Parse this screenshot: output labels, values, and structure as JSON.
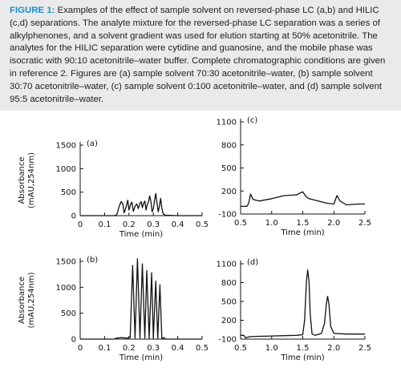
{
  "caption": {
    "label": "FIGURE 1:",
    "text": " Examples of the effect of sample solvent on reversed-phase LC (a,b) and HILIC (c,d) separations. The analyte mixture for the reversed-phase LC separation was a series of alkylphenones, and a solvent gradient was used for elution starting at 50% acetonitrile. The analytes for the HILIC separation were cytidine and guanosine, and the mobile phase was isocratic with 90:10 acetonitrile–water buffer. Complete chromatographic conditions are given in reference 2. Figures are (a) sample solvent 70:30 acetonitrile–water, (b) sample solvent 30:70 acetonitrile–water, (c) sample solvent 0:100 acetonitrile–water, and (d) sample solvent 95:5 acetonitrile–water.",
    "label_color": "#1a8fc9",
    "background": "#e9eaeb"
  },
  "chart_data": [
    {
      "id": "a",
      "type": "line",
      "panel_label": "(a)",
      "xlabel": "Time (min)",
      "ylabel": "Absorbance (mAU,254nm)",
      "xlim": [
        0,
        0.5
      ],
      "ylim": [
        0,
        1500
      ],
      "xticks": [
        0,
        0.1,
        0.2,
        0.3,
        0.4,
        0.5
      ],
      "xtick_labels": [
        "0",
        "0.1",
        "0.2",
        "0.3",
        "0.4",
        "0.5"
      ],
      "yticks": [
        0,
        500,
        1000,
        1500
      ],
      "ytick_labels": [
        "0",
        "500",
        "1000",
        "1500"
      ],
      "series": [
        {
          "x": [
            0,
            0.05,
            0.1,
            0.14,
            0.15,
            0.16,
            0.168,
            0.175,
            0.18,
            0.188,
            0.195,
            0.2,
            0.207,
            0.212,
            0.218,
            0.225,
            0.232,
            0.238,
            0.245,
            0.25,
            0.255,
            0.26,
            0.265,
            0.27,
            0.275,
            0.28,
            0.285,
            0.29,
            0.295,
            0.3,
            0.305,
            0.31,
            0.315,
            0.32,
            0.325,
            0.33,
            0.335,
            0.34,
            0.35,
            0.4,
            0.45,
            0.5
          ],
          "y": [
            0,
            0,
            0,
            0,
            20,
            200,
            300,
            250,
            60,
            180,
            330,
            120,
            240,
            290,
            90,
            200,
            250,
            150,
            260,
            300,
            170,
            260,
            310,
            120,
            240,
            290,
            420,
            300,
            80,
            150,
            320,
            470,
            260,
            80,
            200,
            370,
            160,
            40,
            10,
            0,
            0,
            0
          ]
        }
      ]
    },
    {
      "id": "b",
      "type": "line",
      "panel_label": "(b)",
      "xlabel": "Time (min)",
      "ylabel": "Absorbance (mAU,254nm)",
      "xlim": [
        0,
        0.5
      ],
      "ylim": [
        0,
        1500
      ],
      "xticks": [
        0,
        0.1,
        0.2,
        0.3,
        0.4,
        0.5
      ],
      "xtick_labels": [
        "0",
        "0.1",
        "0.2",
        "0.3",
        "0.4",
        "0.5"
      ],
      "yticks": [
        0,
        500,
        1000,
        1500
      ],
      "ytick_labels": [
        "0",
        "500",
        "1000",
        "1500"
      ],
      "series": [
        {
          "x": [
            0,
            0.1,
            0.14,
            0.15,
            0.17,
            0.19,
            0.205,
            0.215,
            0.225,
            0.235,
            0.245,
            0.255,
            0.265,
            0.273,
            0.283,
            0.293,
            0.3,
            0.31,
            0.318,
            0.327,
            0.335,
            0.343,
            0.35,
            0.36,
            0.4,
            0.5
          ],
          "y": [
            0,
            0,
            0,
            20,
            30,
            20,
            30,
            1420,
            20,
            1550,
            20,
            1450,
            20,
            1320,
            15,
            1280,
            15,
            1120,
            10,
            1050,
            10,
            30,
            0,
            0,
            0,
            0
          ]
        }
      ]
    },
    {
      "id": "c",
      "type": "line",
      "panel_label": "(c)",
      "xlabel": "Time (min)",
      "xlim": [
        0.5,
        2.5
      ],
      "ylim": [
        -100,
        1100
      ],
      "xticks": [
        0.5,
        1.0,
        1.5,
        2.0,
        2.5
      ],
      "xtick_labels": [
        "0.5",
        "1.0",
        "1.5",
        "2.0",
        "2.5"
      ],
      "yticks": [
        -100,
        200,
        500,
        800,
        1100
      ],
      "ytick_labels": [
        "-100",
        "200",
        "500",
        "800",
        "1100"
      ],
      "series": [
        {
          "x": [
            0.5,
            0.6,
            0.63,
            0.66,
            0.7,
            0.8,
            1.0,
            1.2,
            1.4,
            1.5,
            1.55,
            1.6,
            1.7,
            1.8,
            1.9,
            2.0,
            2.05,
            2.1,
            2.2,
            2.4,
            2.5
          ],
          "y": [
            0,
            0,
            40,
            160,
            90,
            70,
            100,
            140,
            150,
            190,
            130,
            100,
            80,
            60,
            40,
            30,
            140,
            70,
            20,
            30,
            30
          ]
        }
      ]
    },
    {
      "id": "d",
      "type": "line",
      "panel_label": "(d)",
      "xlabel": "Time (min)",
      "xlim": [
        0.5,
        2.5
      ],
      "ylim": [
        -100,
        1100
      ],
      "xticks": [
        0.5,
        1.0,
        1.5,
        2.0,
        2.5
      ],
      "xtick_labels": [
        "0.5",
        "1.0",
        "1.5",
        "2.0",
        "2.5"
      ],
      "yticks": [
        -100,
        200,
        500,
        800,
        1100
      ],
      "ytick_labels": [
        "-100",
        "200",
        "500",
        "800",
        "1100"
      ],
      "series": [
        {
          "x": [
            0.5,
            0.55,
            0.58,
            0.65,
            0.8,
            1.0,
            1.2,
            1.4,
            1.5,
            1.53,
            1.56,
            1.58,
            1.6,
            1.62,
            1.65,
            1.7,
            1.8,
            1.85,
            1.88,
            1.9,
            1.92,
            1.95,
            2.0,
            2.2,
            2.5
          ],
          "y": [
            -40,
            -40,
            -80,
            -60,
            -55,
            -50,
            -45,
            -40,
            -30,
            200,
            820,
            1000,
            820,
            300,
            -20,
            -40,
            -10,
            150,
            460,
            580,
            460,
            100,
            -10,
            -20,
            -20
          ]
        }
      ]
    }
  ]
}
